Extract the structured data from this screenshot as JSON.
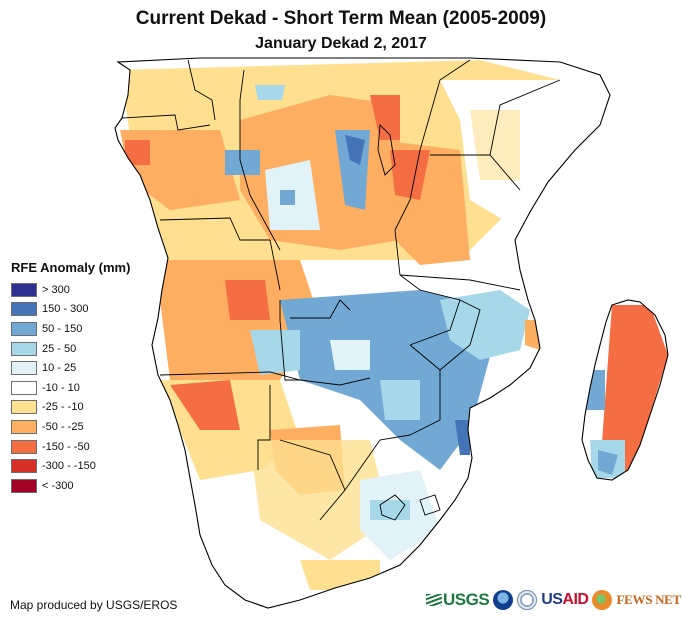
{
  "title": "Current Dekad - Short Term Mean (2005-2009)",
  "subtitle": "January Dekad 2, 2017",
  "legend": {
    "title": "RFE Anomaly (mm)",
    "items": [
      {
        "label": "> 300",
        "color": "#2e3192"
      },
      {
        "label": "150 - 300",
        "color": "#4473b8"
      },
      {
        "label": "50 - 150",
        "color": "#72a8d4"
      },
      {
        "label": "25 - 50",
        "color": "#a7d8ea"
      },
      {
        "label": "10 - 25",
        "color": "#e1f3f9"
      },
      {
        "label": "-10 - 10",
        "color": "#ffffff"
      },
      {
        "label": "-25 - -10",
        "color": "#fee090"
      },
      {
        "label": "-50 - -25",
        "color": "#fdae61"
      },
      {
        "label": "-150 - -50",
        "color": "#f46d43"
      },
      {
        "label": "-300 - -150",
        "color": "#d73027"
      },
      {
        "label": "< -300",
        "color": "#a50026"
      }
    ]
  },
  "credit": "Map produced by USGS/EROS",
  "logos": {
    "usgs": "USGS",
    "usaid_us": "US",
    "usaid_aid": "AID",
    "fews": "FEWS NET"
  }
}
